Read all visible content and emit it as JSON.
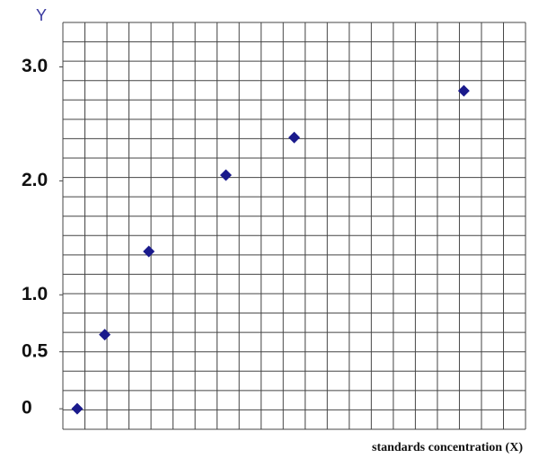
{
  "chart_data": {
    "type": "scatter",
    "y_label": "Y",
    "x_label": "standards concentration (X)",
    "x": [
      0.65,
      1.9,
      3.9,
      7.4,
      10.5,
      18.2
    ],
    "values": [
      0,
      0.65,
      1.38,
      2.05,
      2.38,
      2.79
    ],
    "color": "#1a1a8c",
    "xlim": [
      0,
      21
    ],
    "ylim": [
      -0.18,
      3.39
    ],
    "yticks": [
      0,
      0.5,
      {
        "value": 1,
        "label": "1.0"
      },
      {
        "value": 2,
        "label": "2.0"
      },
      {
        "value": 3,
        "label": "3.0"
      }
    ],
    "grid": true
  }
}
